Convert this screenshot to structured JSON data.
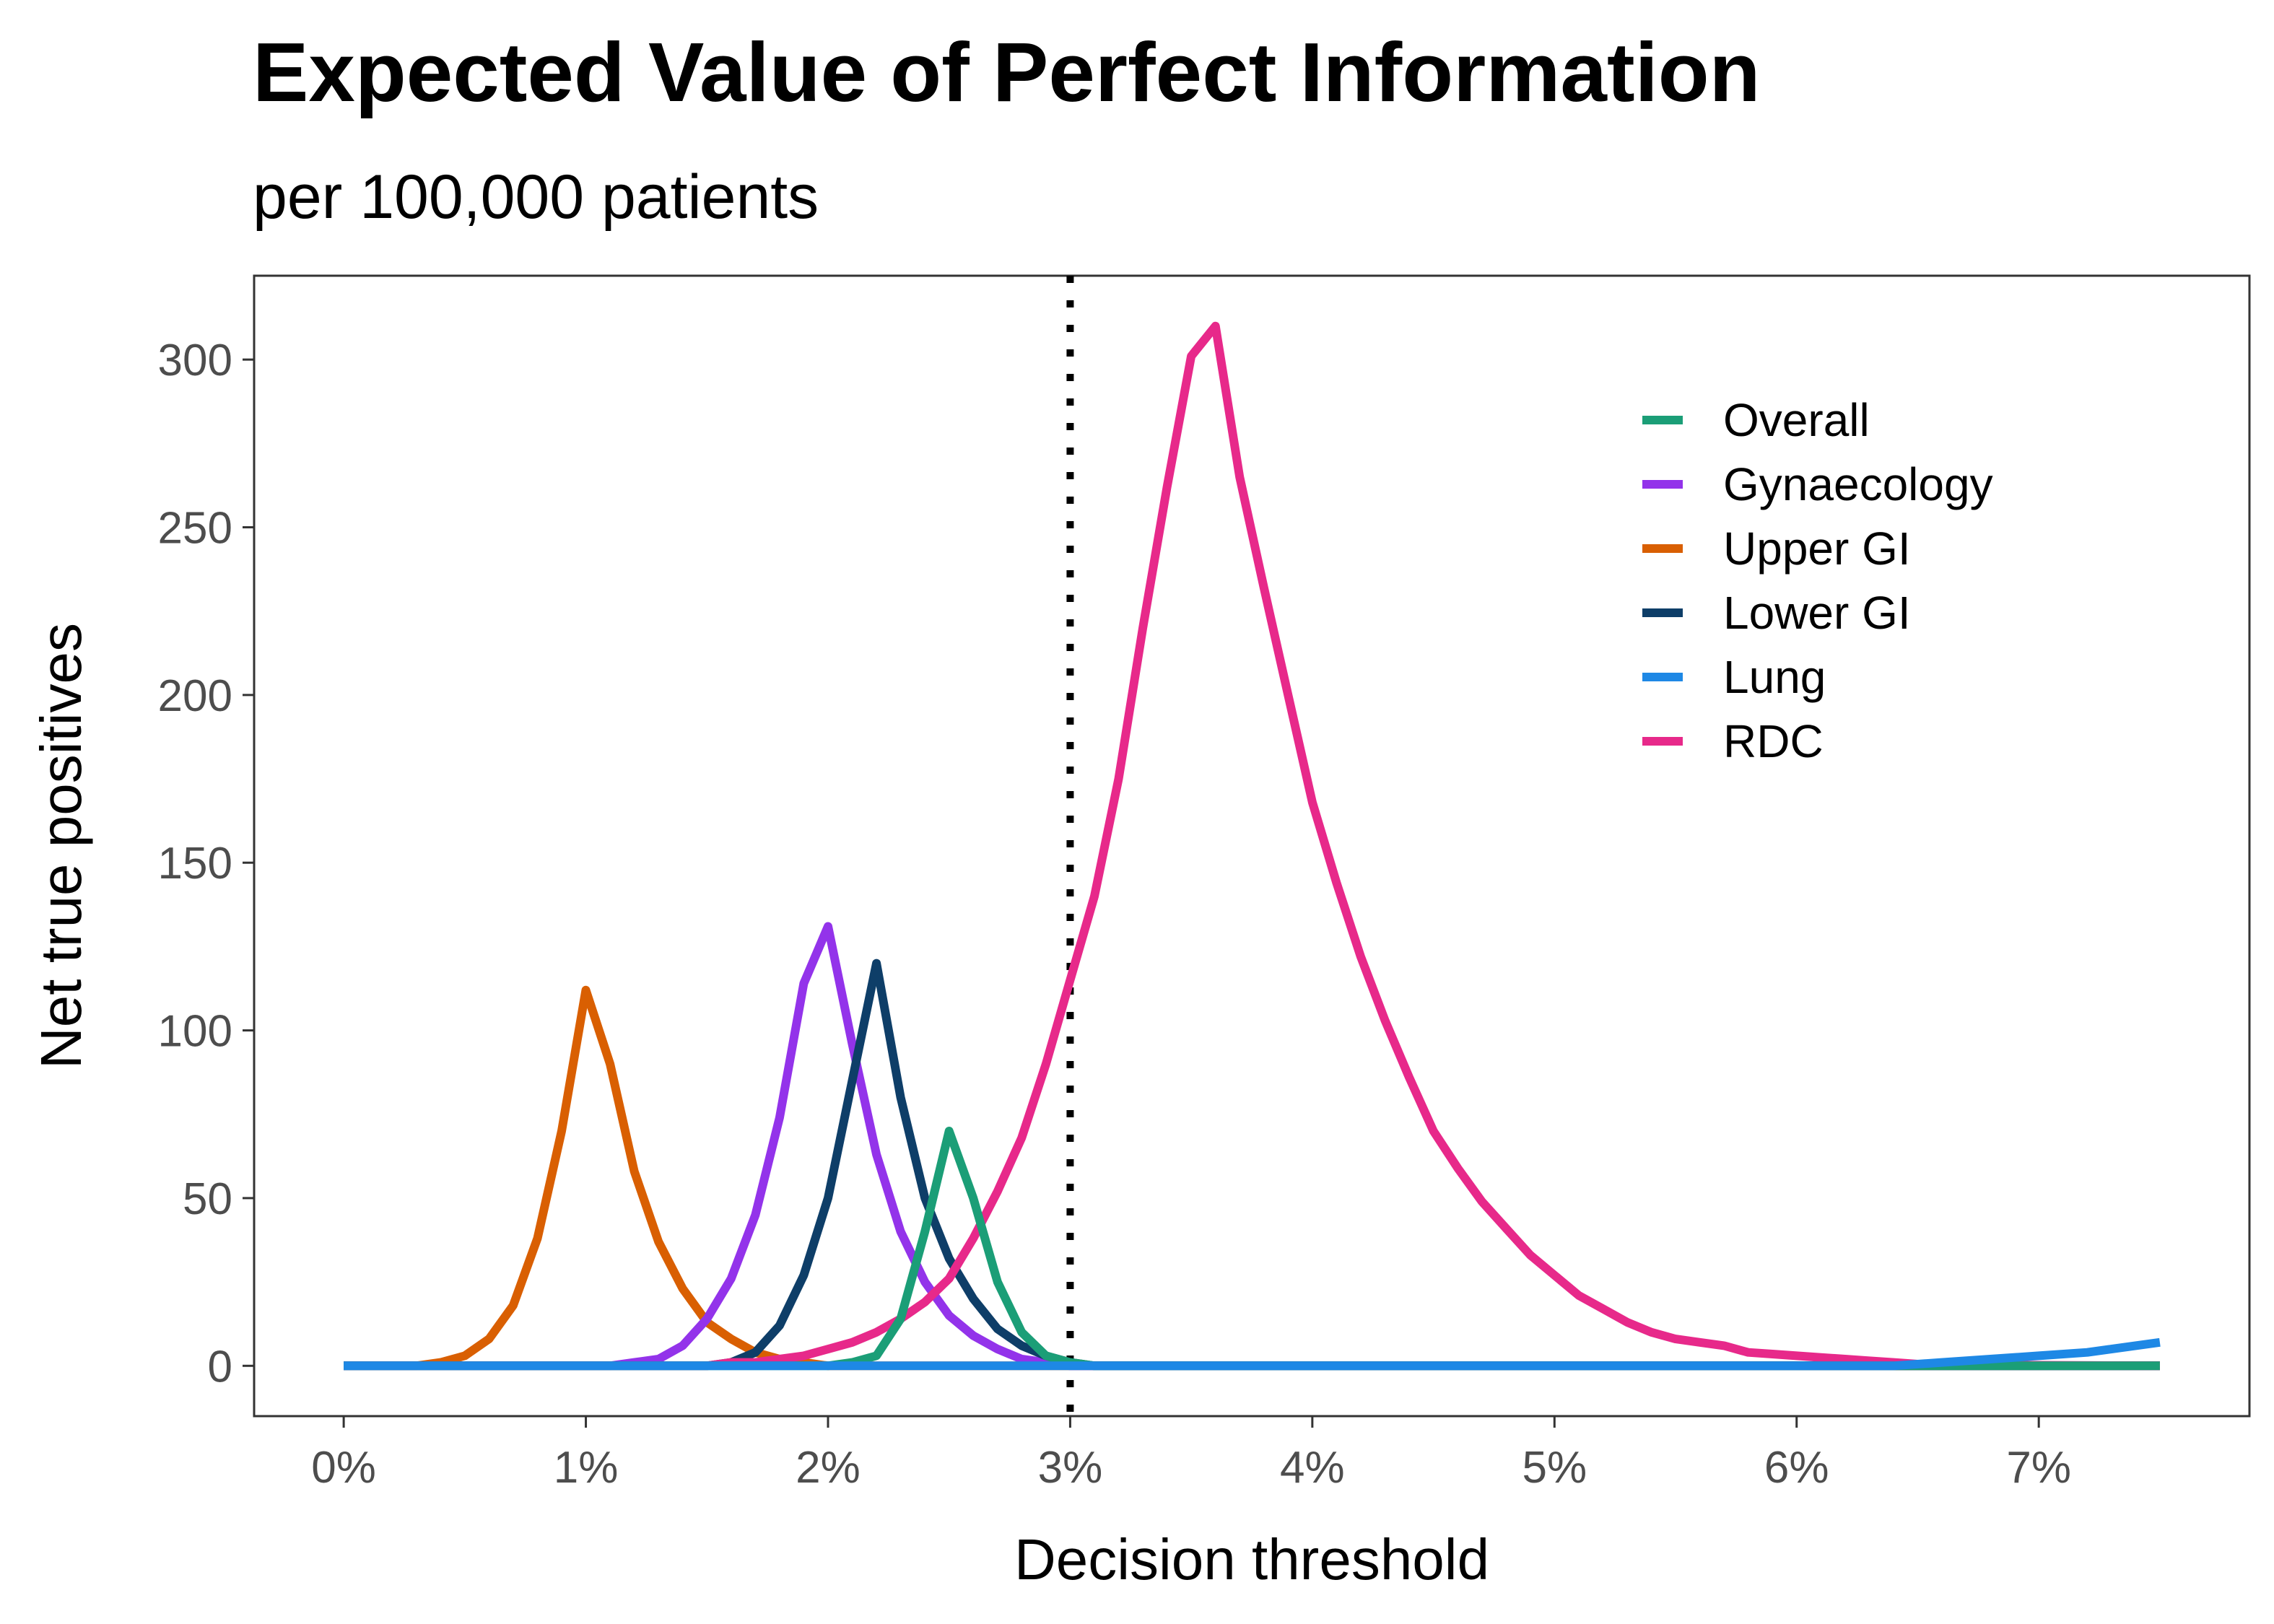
{
  "chart_data": {
    "type": "line",
    "title": "Expected Value of Perfect Information",
    "subtitle": "per 100,000 patients",
    "xlabel": "Decision threshold",
    "ylabel": "Net true positives",
    "xlim": [
      -0.0037,
      0.0787
    ],
    "ylim": [
      -15,
      325
    ],
    "x_ticks": [
      0,
      0.01,
      0.02,
      0.03,
      0.04,
      0.05,
      0.06,
      0.07
    ],
    "x_tick_labels": [
      "0%",
      "1%",
      "2%",
      "3%",
      "4%",
      "5%",
      "6%",
      "7%"
    ],
    "y_ticks": [
      0,
      50,
      100,
      150,
      200,
      250,
      300
    ],
    "y_tick_labels": [
      "0",
      "50",
      "100",
      "150",
      "200",
      "250",
      "300"
    ],
    "grid": false,
    "legend_position": "top-right",
    "reference_line": {
      "x": 0.03,
      "style": "dotted",
      "color": "#000000"
    },
    "series": [
      {
        "name": "Overall",
        "color": "#1b9e77",
        "points": [
          [
            0,
            0
          ],
          [
            0.02,
            0
          ],
          [
            0.021,
            1
          ],
          [
            0.022,
            3
          ],
          [
            0.023,
            14
          ],
          [
            0.024,
            40
          ],
          [
            0.025,
            70
          ],
          [
            0.026,
            50
          ],
          [
            0.027,
            25
          ],
          [
            0.028,
            10
          ],
          [
            0.029,
            3
          ],
          [
            0.03,
            1
          ],
          [
            0.031,
            0
          ],
          [
            0.075,
            0
          ]
        ]
      },
      {
        "name": "Gynaecology",
        "color": "#9333ea",
        "points": [
          [
            0,
            0
          ],
          [
            0.011,
            0
          ],
          [
            0.012,
            1
          ],
          [
            0.013,
            2
          ],
          [
            0.014,
            6
          ],
          [
            0.015,
            14
          ],
          [
            0.016,
            26
          ],
          [
            0.017,
            45
          ],
          [
            0.018,
            74
          ],
          [
            0.019,
            114
          ],
          [
            0.02,
            131
          ],
          [
            0.021,
            96
          ],
          [
            0.022,
            63
          ],
          [
            0.023,
            40
          ],
          [
            0.024,
            25
          ],
          [
            0.025,
            15
          ],
          [
            0.026,
            9
          ],
          [
            0.027,
            5
          ],
          [
            0.028,
            2
          ],
          [
            0.029,
            1
          ],
          [
            0.03,
            0
          ],
          [
            0.075,
            0
          ]
        ]
      },
      {
        "name": "Upper GI",
        "color": "#d95f02",
        "points": [
          [
            0,
            0
          ],
          [
            0.003,
            0
          ],
          [
            0.004,
            1
          ],
          [
            0.005,
            3
          ],
          [
            0.006,
            8
          ],
          [
            0.007,
            18
          ],
          [
            0.008,
            38
          ],
          [
            0.009,
            70
          ],
          [
            0.01,
            112
          ],
          [
            0.011,
            90
          ],
          [
            0.012,
            58
          ],
          [
            0.013,
            37
          ],
          [
            0.014,
            23
          ],
          [
            0.015,
            13
          ],
          [
            0.016,
            8
          ],
          [
            0.017,
            4
          ],
          [
            0.018,
            2
          ],
          [
            0.019,
            1
          ],
          [
            0.02,
            0
          ],
          [
            0.075,
            0
          ]
        ]
      },
      {
        "name": "Lower GI",
        "color": "#0e3e68",
        "points": [
          [
            0,
            0
          ],
          [
            0.015,
            0
          ],
          [
            0.016,
            1
          ],
          [
            0.017,
            4
          ],
          [
            0.018,
            12
          ],
          [
            0.019,
            27
          ],
          [
            0.02,
            50
          ],
          [
            0.021,
            85
          ],
          [
            0.022,
            120
          ],
          [
            0.023,
            80
          ],
          [
            0.024,
            50
          ],
          [
            0.025,
            32
          ],
          [
            0.026,
            20
          ],
          [
            0.027,
            11
          ],
          [
            0.028,
            6
          ],
          [
            0.029,
            3
          ],
          [
            0.03,
            1
          ],
          [
            0.031,
            0
          ],
          [
            0.075,
            0
          ]
        ]
      },
      {
        "name": "Lung",
        "color": "#1e88e5",
        "points": [
          [
            0,
            0
          ],
          [
            0.064,
            0
          ],
          [
            0.066,
            1
          ],
          [
            0.068,
            2
          ],
          [
            0.07,
            3
          ],
          [
            0.072,
            4
          ],
          [
            0.073,
            5
          ],
          [
            0.074,
            6
          ],
          [
            0.075,
            7
          ]
        ]
      },
      {
        "name": "RDC",
        "color": "#e7298a",
        "points": [
          [
            0,
            0
          ],
          [
            0.015,
            0
          ],
          [
            0.016,
            1
          ],
          [
            0.017,
            1
          ],
          [
            0.018,
            2
          ],
          [
            0.019,
            3
          ],
          [
            0.02,
            5
          ],
          [
            0.021,
            7
          ],
          [
            0.022,
            10
          ],
          [
            0.023,
            14
          ],
          [
            0.024,
            19
          ],
          [
            0.025,
            26
          ],
          [
            0.026,
            38
          ],
          [
            0.027,
            52
          ],
          [
            0.028,
            68
          ],
          [
            0.029,
            90
          ],
          [
            0.03,
            115
          ],
          [
            0.031,
            140
          ],
          [
            0.032,
            175
          ],
          [
            0.033,
            220
          ],
          [
            0.034,
            262
          ],
          [
            0.035,
            301
          ],
          [
            0.036,
            310
          ],
          [
            0.037,
            265
          ],
          [
            0.038,
            232
          ],
          [
            0.039,
            200
          ],
          [
            0.04,
            168
          ],
          [
            0.041,
            144
          ],
          [
            0.042,
            122
          ],
          [
            0.043,
            103
          ],
          [
            0.044,
            86
          ],
          [
            0.045,
            70
          ],
          [
            0.046,
            59
          ],
          [
            0.047,
            49
          ],
          [
            0.048,
            41
          ],
          [
            0.049,
            33
          ],
          [
            0.05,
            27
          ],
          [
            0.051,
            21
          ],
          [
            0.052,
            17
          ],
          [
            0.053,
            13
          ],
          [
            0.054,
            10
          ],
          [
            0.055,
            8
          ],
          [
            0.056,
            7
          ],
          [
            0.057,
            6
          ],
          [
            0.058,
            4
          ],
          [
            0.059,
            3.5
          ],
          [
            0.06,
            3
          ],
          [
            0.061,
            2.5
          ],
          [
            0.062,
            2
          ],
          [
            0.063,
            1.5
          ],
          [
            0.064,
            1
          ],
          [
            0.065,
            0.5
          ],
          [
            0.066,
            0.3
          ],
          [
            0.075,
            0
          ]
        ]
      }
    ]
  }
}
